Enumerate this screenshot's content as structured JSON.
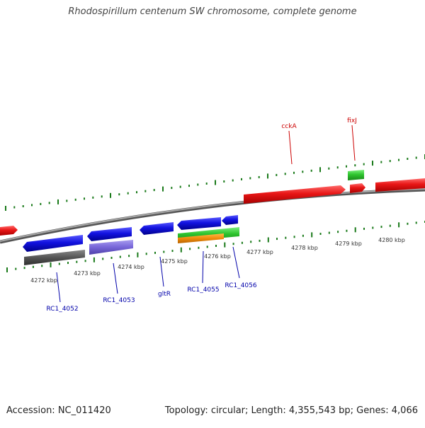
{
  "title": "Rhodospirillum centenum SW chromosome, complete genome",
  "footer": {
    "accession": "Accession: NC_011420",
    "summary": "Topology: circular; Length: 4,355,543 bp; Genes: 4,066"
  },
  "scale_labels": [
    "4272 kbp",
    "4273 kbp",
    "4274 kbp",
    "4275 kbp",
    "4276 kbp",
    "4277 kbp",
    "4278 kbp",
    "4279 kbp",
    "4280 kbp"
  ],
  "gene_labels": {
    "cckA": "cckA",
    "fixJ": "fixJ",
    "rc1_4052": "RC1_4052",
    "rc1_4053": "RC1_4053",
    "gltR": "gltR",
    "rc1_4055": "RC1_4055",
    "rc1_4056": "RC1_4056"
  },
  "colors": {
    "forward_gene": "#e81616",
    "reverse_gene": "#1212e0",
    "rna_gene": "#2ec42e",
    "pseudo_orange": "#f08c0a",
    "dark_gray_feature": "#555555",
    "purple_feature": "#7766d8",
    "tick": "#1a7a1a",
    "backbone": "#888888",
    "forward_label": "#cc0000",
    "reverse_label": "#0000aa"
  }
}
